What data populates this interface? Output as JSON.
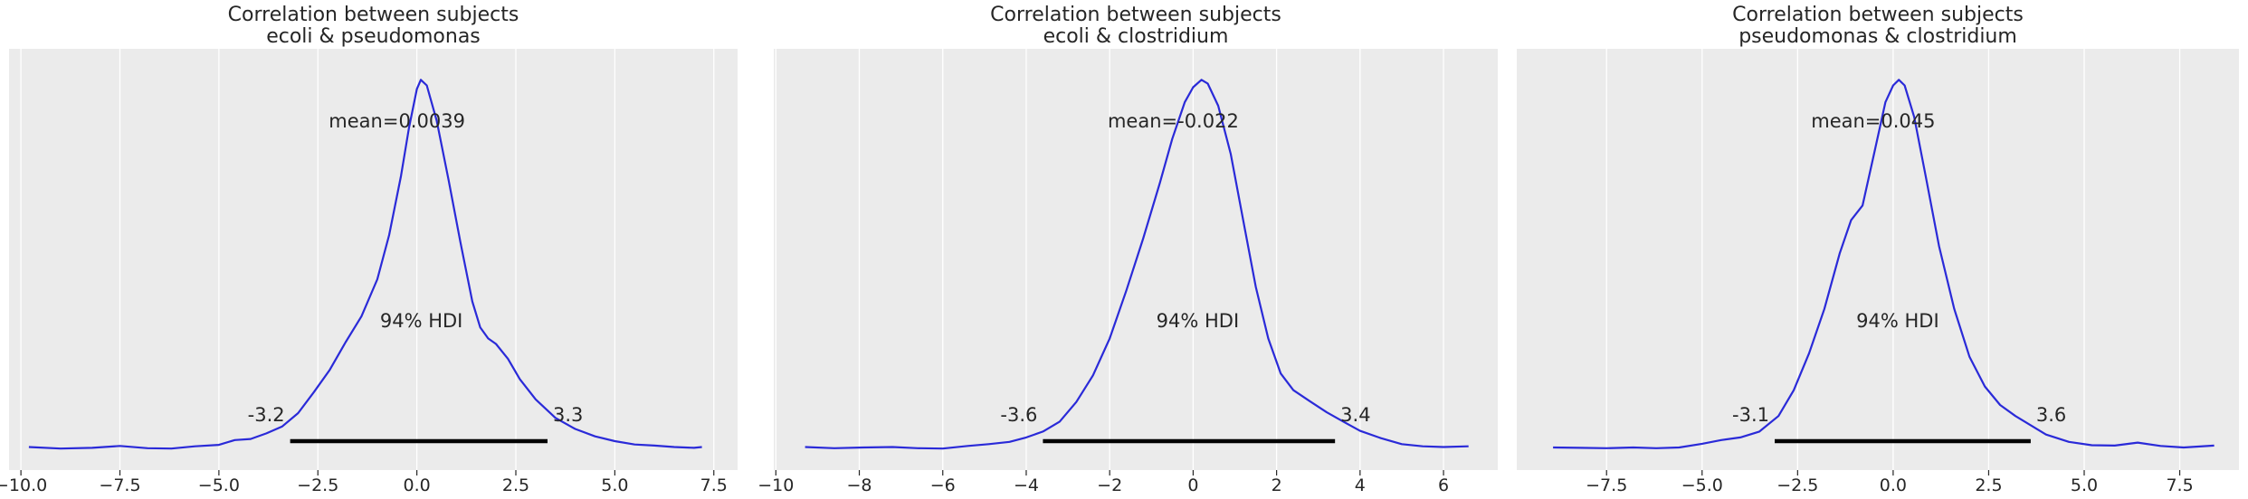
{
  "colors": {
    "background": "#ebebeb",
    "grid": "#ffffff",
    "kde": "#2a2ad8",
    "hdi": "#000000",
    "text": "#262626"
  },
  "chart_data": [
    {
      "type": "line",
      "title": "Correlation between subjects",
      "subtitle": "ecoli & pseudomonas",
      "xlim": [
        -10.3,
        8.1
      ],
      "ylim": [
        0,
        1.04
      ],
      "xticks": [
        -10.0,
        -7.5,
        -5.0,
        -2.5,
        0.0,
        2.5,
        5.0,
        7.5
      ],
      "xtick_labels": [
        "−10.0",
        "−7.5",
        "−5.0",
        "−2.5",
        "0.0",
        "2.5",
        "5.0",
        "7.5"
      ],
      "mean_label": "mean=0.0039",
      "hdi_label": "94% HDI",
      "hdi": [
        -3.2,
        3.3
      ],
      "hdi_labels": [
        "-3.2",
        "3.3"
      ],
      "grid": true,
      "x": [
        -9.8,
        -9.0,
        -8.2,
        -7.5,
        -6.8,
        -6.2,
        -5.6,
        -5.0,
        -4.6,
        -4.2,
        -3.8,
        -3.4,
        -3.0,
        -2.6,
        -2.2,
        -1.8,
        -1.4,
        -1.0,
        -0.7,
        -0.4,
        -0.2,
        0.0,
        0.1,
        0.25,
        0.5,
        0.8,
        1.1,
        1.4,
        1.6,
        1.8,
        2.0,
        2.3,
        2.6,
        3.0,
        3.5,
        4.0,
        4.5,
        5.0,
        5.5,
        6.0,
        6.5,
        7.0,
        7.2
      ],
      "y": [
        0.006,
        0.002,
        0.004,
        0.009,
        0.003,
        0.002,
        0.008,
        0.012,
        0.025,
        0.028,
        0.043,
        0.062,
        0.098,
        0.155,
        0.215,
        0.29,
        0.36,
        0.46,
        0.58,
        0.74,
        0.87,
        0.975,
        1.0,
        0.985,
        0.89,
        0.73,
        0.56,
        0.4,
        0.33,
        0.3,
        0.285,
        0.245,
        0.19,
        0.135,
        0.085,
        0.055,
        0.035,
        0.022,
        0.013,
        0.01,
        0.006,
        0.004,
        0.006
      ]
    },
    {
      "type": "line",
      "title": "Correlation between subjects",
      "subtitle": "ecoli & clostridium",
      "xlim": [
        -10.05,
        7.3
      ],
      "ylim": [
        0,
        1.04
      ],
      "xticks": [
        -10,
        -8,
        -6,
        -4,
        -2,
        0,
        2,
        4,
        6
      ],
      "xtick_labels": [
        "−10",
        "−8",
        "−6",
        "−4",
        "−2",
        "0",
        "2",
        "4",
        "6"
      ],
      "mean_label": "mean=-0.022",
      "hdi_label": "94% HDI",
      "hdi": [
        -3.6,
        3.4
      ],
      "hdi_labels": [
        "-3.6",
        "3.4"
      ],
      "grid": true,
      "x": [
        -9.3,
        -8.6,
        -7.9,
        -7.2,
        -6.6,
        -6.0,
        -5.4,
        -4.9,
        -4.4,
        -4.0,
        -3.6,
        -3.2,
        -2.8,
        -2.4,
        -2.0,
        -1.6,
        -1.2,
        -0.8,
        -0.5,
        -0.2,
        0.0,
        0.2,
        0.35,
        0.6,
        0.9,
        1.2,
        1.5,
        1.8,
        2.1,
        2.4,
        2.8,
        3.2,
        3.6,
        4.0,
        4.5,
        5.0,
        5.5,
        6.0,
        6.6
      ],
      "y": [
        0.006,
        0.003,
        0.005,
        0.006,
        0.003,
        0.002,
        0.009,
        0.014,
        0.02,
        0.032,
        0.048,
        0.075,
        0.128,
        0.2,
        0.3,
        0.43,
        0.57,
        0.72,
        0.84,
        0.94,
        0.98,
        1.0,
        0.99,
        0.93,
        0.8,
        0.62,
        0.44,
        0.3,
        0.205,
        0.16,
        0.13,
        0.1,
        0.075,
        0.05,
        0.03,
        0.014,
        0.008,
        0.006,
        0.008
      ]
    },
    {
      "type": "line",
      "title": "Correlation between subjects",
      "subtitle": "pseudomonas & clostridium",
      "xlim": [
        -9.85,
        9.05
      ],
      "ylim": [
        0,
        1.04
      ],
      "xticks": [
        -7.5,
        -5.0,
        -2.5,
        0.0,
        2.5,
        5.0,
        7.5
      ],
      "xtick_labels": [
        "−7.5",
        "−5.0",
        "−2.5",
        "0.0",
        "2.5",
        "5.0",
        "7.5"
      ],
      "mean_label": "mean=0.045",
      "hdi_label": "94% HDI",
      "hdi": [
        -3.1,
        3.6
      ],
      "hdi_labels": [
        "-3.1",
        "3.6"
      ],
      "grid": true,
      "x": [
        -8.9,
        -8.2,
        -7.5,
        -6.8,
        -6.2,
        -5.6,
        -5.0,
        -4.5,
        -4.0,
        -3.5,
        -3.0,
        -2.6,
        -2.2,
        -1.8,
        -1.4,
        -1.1,
        -0.8,
        -0.5,
        -0.2,
        0.0,
        0.15,
        0.3,
        0.55,
        0.85,
        1.2,
        1.6,
        2.0,
        2.4,
        2.8,
        3.2,
        3.6,
        4.0,
        4.6,
        5.2,
        5.8,
        6.4,
        7.0,
        7.6,
        8.4
      ],
      "y": [
        0.005,
        0.004,
        0.003,
        0.005,
        0.003,
        0.005,
        0.015,
        0.025,
        0.032,
        0.048,
        0.09,
        0.16,
        0.26,
        0.38,
        0.53,
        0.62,
        0.66,
        0.8,
        0.94,
        0.985,
        1.0,
        0.985,
        0.9,
        0.74,
        0.55,
        0.38,
        0.25,
        0.17,
        0.12,
        0.09,
        0.065,
        0.04,
        0.02,
        0.011,
        0.01,
        0.018,
        0.009,
        0.005,
        0.01
      ]
    }
  ]
}
